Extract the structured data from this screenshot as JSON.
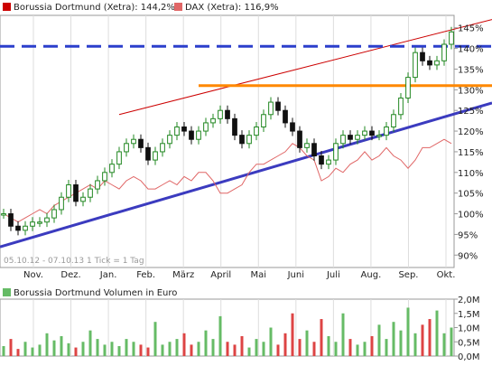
{
  "legend": {
    "primary_label": "Borussia Dortmund (Xetra): 144,2%",
    "primary_color": "#cc0000",
    "compare_label": "DAX (Xetra): 116,9%",
    "compare_color": "#e06666"
  },
  "info_text": "05.10.12 - 07.10.13   1 Tick = 1 Tag",
  "volume_legend": {
    "label": "Borussia Dortmund Volumen in Euro",
    "color": "#66bb66"
  },
  "colors": {
    "up_candle": "#228822",
    "down_candle": "#111111",
    "compare_line": "#e06666",
    "trend_line": "#3b3bbf",
    "resistance_line": "#cc0000",
    "support_line": "#ff8800",
    "dashed_line": "#2b3fcc",
    "volume_up": "#66bb66",
    "volume_down": "#dd4444",
    "grid": "#dddddd"
  },
  "chart_data": [
    {
      "type": "candlestick+line",
      "x_tick_labels": [
        "Nov.",
        "Dez.",
        "Jan.",
        "Feb.",
        "März",
        "April",
        "Mai",
        "Juni",
        "Juli",
        "Aug.",
        "Sep.",
        "Okt."
      ],
      "y_tick_labels": [
        "145%",
        "140%",
        "135%",
        "130%",
        "125%",
        "120%",
        "115%",
        "110%",
        "105%",
        "100%",
        "95%",
        "90%"
      ],
      "ylim": [
        87,
        148
      ],
      "grid": "vertical",
      "legend_position": "top-left",
      "series": [
        {
          "name": "Borussia Dortmund (Xetra)",
          "style": "candles",
          "close_percent": [
            100,
            97,
            96,
            97,
            98,
            98,
            99,
            101,
            104,
            107,
            103,
            104,
            106,
            108,
            110,
            112,
            115,
            117,
            118,
            116,
            113,
            115,
            117,
            119,
            121,
            120,
            118,
            120,
            122,
            123,
            125,
            123,
            119,
            117,
            119,
            121,
            124,
            127,
            125,
            122,
            120,
            116,
            117,
            114,
            112,
            113,
            117,
            119,
            118,
            119,
            120,
            119,
            119,
            121,
            124,
            128,
            133,
            139,
            137,
            136,
            137,
            141,
            144
          ]
        },
        {
          "name": "DAX (Xetra)",
          "style": "line",
          "close_percent": [
            100,
            99,
            98,
            99,
            100,
            101,
            100,
            102,
            103,
            104,
            105,
            106,
            107,
            106,
            108,
            107,
            106,
            108,
            109,
            108,
            106,
            106,
            107,
            108,
            107,
            109,
            108,
            110,
            110,
            108,
            105,
            105,
            106,
            107,
            110,
            112,
            112,
            113,
            114,
            115,
            117,
            116,
            114,
            113,
            108,
            109,
            111,
            110,
            112,
            113,
            115,
            113,
            114,
            116,
            114,
            113,
            111,
            113,
            116,
            116,
            117,
            118,
            117
          ]
        }
      ],
      "annotations": [
        {
          "name": "uptrend-support",
          "from": [
            0,
            92
          ],
          "to": [
            62,
            125.5
          ]
        },
        {
          "name": "upper-channel",
          "from": [
            16,
            124
          ],
          "to": [
            62,
            147
          ]
        },
        {
          "name": "orange-resistance",
          "level": 131,
          "from_index": 27
        },
        {
          "name": "blue-dashed-level",
          "level": 140.5
        }
      ]
    },
    {
      "type": "bar",
      "title": "Borussia Dortmund Volumen in Euro",
      "y_tick_labels": [
        "2,0M",
        "1,5M",
        "1,0M",
        "0,5M",
        "0,0M"
      ],
      "ylim": [
        0,
        2.0
      ],
      "values_million": [
        0.35,
        0.6,
        0.25,
        0.5,
        0.3,
        0.4,
        0.8,
        0.55,
        0.7,
        0.45,
        0.3,
        0.5,
        0.9,
        0.6,
        0.4,
        0.5,
        0.35,
        0.6,
        0.5,
        0.4,
        0.3,
        1.2,
        0.4,
        0.5,
        0.6,
        0.8,
        0.4,
        0.5,
        0.9,
        0.6,
        1.4,
        0.5,
        0.4,
        0.7,
        0.3,
        0.6,
        0.5,
        1.0,
        0.4,
        0.8,
        1.5,
        0.6,
        0.9,
        0.5,
        1.3,
        0.7,
        0.5,
        1.5,
        0.6,
        0.4,
        0.5,
        0.7,
        1.1,
        0.6,
        1.2,
        0.9,
        1.7,
        0.8,
        1.1,
        1.3,
        1.6,
        0.8,
        1.0
      ]
    }
  ]
}
